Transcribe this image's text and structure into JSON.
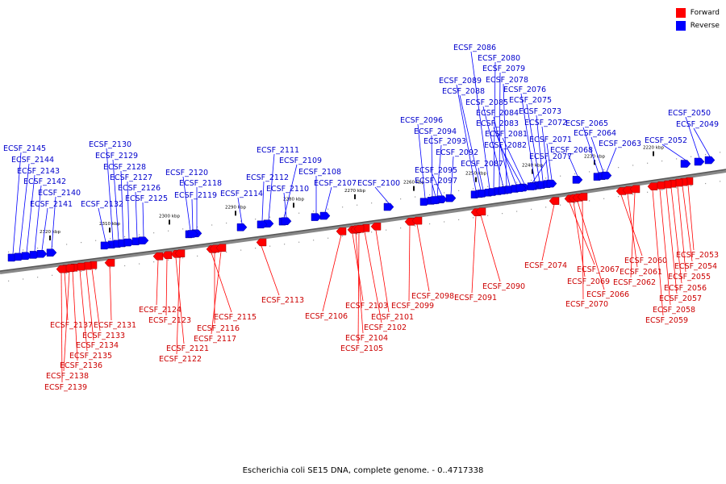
{
  "legend": {
    "forward_label": "Forward",
    "reverse_label": "Reverse",
    "forward_color": "#ff0000",
    "reverse_color": "#0000ff"
  },
  "caption": "Escherichia coli SE15 DNA, complete genome. - 0..4717338",
  "ticks": [
    "2320 kbp",
    "2310 kbp",
    "2300 kbp",
    "2290 kbp",
    "2280 kbp",
    "2270 kbp",
    "2260 kbp",
    "2250 kbp",
    "2240 kbp",
    "2230 kbp",
    "2220 kbp"
  ],
  "reverse_genes": [
    "ECSF_2145",
    "ECSF_2144",
    "ECSF_2143",
    "ECSF_2142",
    "ECSF_2140",
    "ECSF_2141",
    "ECSF_2130",
    "ECSF_2129",
    "ECSF_2128",
    "ECSF_2127",
    "ECSF_2126",
    "ECSF_2125",
    "ECSF_2132",
    "ECSF_2120",
    "ECSF_2118",
    "ECSF_2119",
    "ECSF_2114",
    "ECSF_2111",
    "ECSF_2112",
    "ECSF_2109",
    "ECSF_2110",
    "ECSF_2108",
    "ECSF_2107",
    "ECSF_2100",
    "ECSF_2096",
    "ECSF_2094",
    "ECSF_2093",
    "ECSF_2092",
    "ECSF_2095",
    "ECSF_2097",
    "ECSF_2089",
    "ECSF_2088",
    "ECSF_2087",
    "ECSF_2086",
    "ECSF_2080",
    "ECSF_2079",
    "ECSF_2078",
    "ECSF_2085",
    "ECSF_2084",
    "ECSF_2083",
    "ECSF_2081",
    "ECSF_2082",
    "ECSF_2076",
    "ECSF_2075",
    "ECSF_2073",
    "ECSF_2072",
    "ECSF_2071",
    "ECSF_2077",
    "ECSF_2068",
    "ECSF_2065",
    "ECSF_2064",
    "ECSF_2063",
    "ECSF_2052",
    "ECSF_2050",
    "ECSF_2049"
  ],
  "forward_genes": [
    "ECSF_2137",
    "ECSF_2131",
    "ECSF_2133",
    "ECSF_2134",
    "ECSF_2135",
    "ECSF_2136",
    "ECSF_2138",
    "ECSF_2139",
    "ECSF_2124",
    "ECSF_2123",
    "ECSF_2121",
    "ECSF_2122",
    "ECSF_2115",
    "ECSF_2116",
    "ECSF_2117",
    "ECSF_2113",
    "ECSF_2106",
    "ECSF_2103",
    "ECSF_2102",
    "ECSF_2101",
    "ECSF_2104",
    "ECSF_2105",
    "ECSF_2099",
    "ECSF_2098",
    "ECSF_2091",
    "ECSF_2090",
    "ECSF_2074",
    "ECSF_2067",
    "ECSF_2069",
    "ECSF_2066",
    "ECSF_2070",
    "ECSF_2060",
    "ECSF_2061",
    "ECSF_2062",
    "ECSF_2053",
    "ECSF_2054",
    "ECSF_2055",
    "ECSF_2056",
    "ECSF_2057",
    "ECSF_2058",
    "ECSF_2059"
  ]
}
